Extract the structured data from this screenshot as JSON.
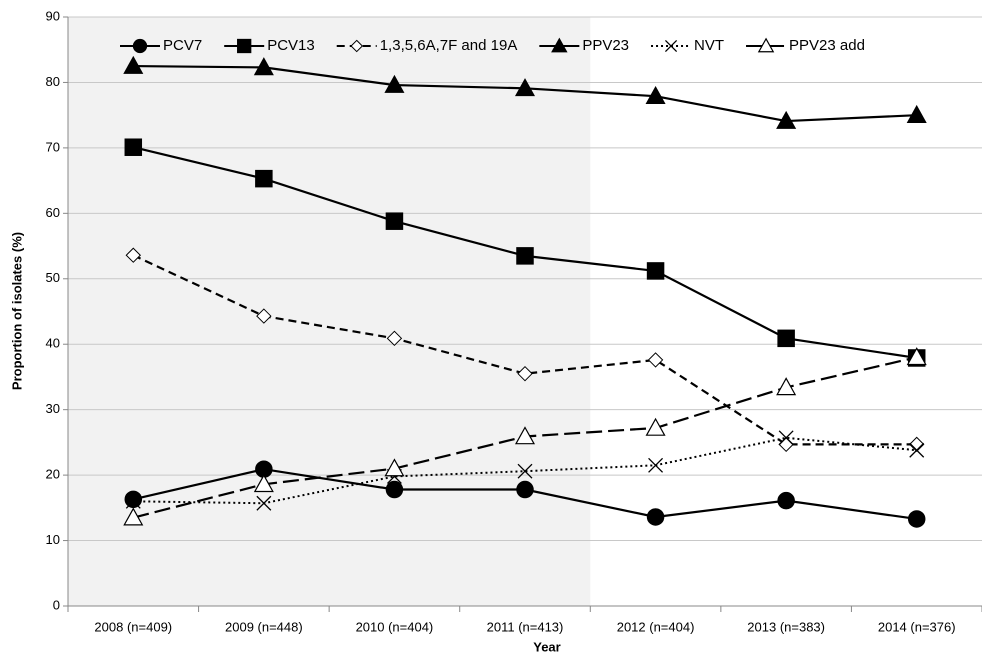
{
  "chart_data": {
    "type": "line",
    "xlabel": "Year",
    "ylabel": "Proportion of isolates (%)",
    "categories": [
      "2008 (n=409)",
      "2009 (n=448)",
      "2010 (n=404)",
      "2011 (n=413)",
      "2012 (n=404)",
      "2013 (n=383)",
      "2014 (n=376)"
    ],
    "ylim": [
      0,
      90
    ],
    "yticks": [
      0,
      10,
      20,
      30,
      40,
      50,
      60,
      70,
      80,
      90
    ],
    "grid": true,
    "legend": "top",
    "series": [
      {
        "name": "PCV7",
        "color": "#000000",
        "marker": "circle",
        "fill": "filled",
        "linestyle": "solid",
        "values": [
          16.3,
          20.9,
          17.8,
          17.8,
          13.6,
          16.1,
          13.3
        ]
      },
      {
        "name": "PCV13",
        "color": "#000000",
        "marker": "square",
        "fill": "filled",
        "linestyle": "solid",
        "values": [
          70.1,
          65.3,
          58.8,
          53.5,
          51.2,
          40.9,
          37.9
        ]
      },
      {
        "name": "1,3,5,6A,7F and 19A",
        "color": "#000000",
        "marker": "diamond",
        "fill": "open",
        "linestyle": "dashed",
        "values": [
          53.6,
          44.3,
          40.9,
          35.5,
          37.6,
          24.7,
          24.7
        ]
      },
      {
        "name": "PPV23",
        "color": "#000000",
        "marker": "triangle",
        "fill": "filled",
        "linestyle": "solid",
        "values": [
          82.5,
          82.3,
          79.6,
          79.1,
          77.9,
          74.1,
          75.0
        ]
      },
      {
        "name": "NVT",
        "color": "#000000",
        "marker": "x",
        "fill": "open",
        "linestyle": "dotted",
        "values": [
          16.0,
          15.7,
          19.8,
          20.6,
          21.5,
          25.7,
          23.8
        ]
      },
      {
        "name": "PPV23 add",
        "color": "#000000",
        "marker": "triangle",
        "fill": "open",
        "linestyle": "longdash",
        "values": [
          13.5,
          18.6,
          21.0,
          25.9,
          27.2,
          33.4,
          38.0
        ]
      }
    ]
  }
}
